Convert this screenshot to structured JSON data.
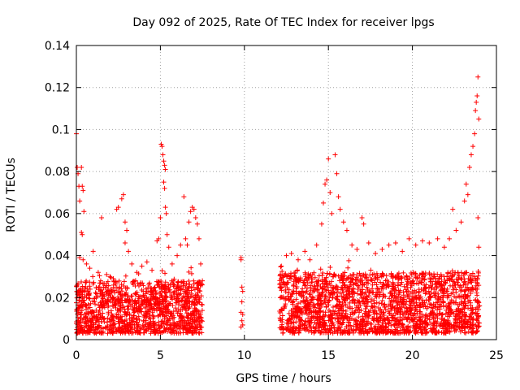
{
  "chart_data": {
    "type": "scatter",
    "title": "Day 092 of 2025, Rate Of TEC Index for receiver lpgs",
    "xlabel": "GPS time / hours",
    "ylabel": "ROTI / TECUs",
    "xlim": [
      0,
      25
    ],
    "ylim": [
      0,
      0.14
    ],
    "xticks": [
      0,
      5,
      10,
      15,
      20,
      25
    ],
    "xtick_labels": [
      "0",
      "5",
      "10",
      "15",
      "20",
      "25"
    ],
    "yticks": [
      0,
      0.02,
      0.04,
      0.06,
      0.08,
      0.1,
      0.12,
      0.14
    ],
    "ytick_labels": [
      "0",
      "0.02",
      "0.04",
      "0.06",
      "0.08",
      "0.1",
      "0.12",
      "0.14"
    ],
    "grid": true,
    "marker": "+",
    "color": "#ff0000",
    "data_gaps_hours": [
      [
        7.5,
        9.7
      ],
      [
        10.0,
        12.1
      ]
    ],
    "series": [
      {
        "name": "ROTI",
        "points": [
          [
            0.0,
            0.098
          ],
          [
            0.05,
            0.082
          ],
          [
            0.1,
            0.079
          ],
          [
            0.15,
            0.073
          ],
          [
            0.2,
            0.066
          ],
          [
            0.3,
            0.082
          ],
          [
            0.35,
            0.073
          ],
          [
            0.4,
            0.071
          ],
          [
            0.45,
            0.061
          ],
          [
            0.3,
            0.051
          ],
          [
            0.35,
            0.05
          ],
          [
            0.2,
            0.039
          ],
          [
            0.4,
            0.038
          ],
          [
            0.6,
            0.036
          ],
          [
            0.8,
            0.034
          ],
          [
            1.0,
            0.042
          ],
          [
            1.3,
            0.032
          ],
          [
            1.5,
            0.058
          ],
          [
            1.8,
            0.031
          ],
          [
            2.0,
            0.03
          ],
          [
            2.2,
            0.029
          ],
          [
            2.4,
            0.062
          ],
          [
            2.5,
            0.063
          ],
          [
            2.7,
            0.067
          ],
          [
            2.8,
            0.069
          ],
          [
            2.9,
            0.056
          ],
          [
            3.0,
            0.052
          ],
          [
            2.9,
            0.046
          ],
          [
            3.1,
            0.042
          ],
          [
            3.3,
            0.036
          ],
          [
            3.6,
            0.032
          ],
          [
            3.9,
            0.035
          ],
          [
            4.2,
            0.037
          ],
          [
            4.5,
            0.033
          ],
          [
            4.8,
            0.047
          ],
          [
            4.9,
            0.048
          ],
          [
            5.0,
            0.058
          ],
          [
            5.05,
            0.093
          ],
          [
            5.1,
            0.092
          ],
          [
            5.15,
            0.088
          ],
          [
            5.2,
            0.085
          ],
          [
            5.25,
            0.083
          ],
          [
            5.3,
            0.081
          ],
          [
            5.2,
            0.075
          ],
          [
            5.25,
            0.072
          ],
          [
            5.3,
            0.063
          ],
          [
            5.35,
            0.06
          ],
          [
            5.4,
            0.05
          ],
          [
            5.5,
            0.044
          ],
          [
            5.7,
            0.036
          ],
          [
            6.0,
            0.04
          ],
          [
            6.2,
            0.045
          ],
          [
            6.4,
            0.068
          ],
          [
            6.5,
            0.048
          ],
          [
            6.6,
            0.045
          ],
          [
            6.7,
            0.056
          ],
          [
            6.8,
            0.061
          ],
          [
            6.9,
            0.063
          ],
          [
            7.0,
            0.062
          ],
          [
            7.1,
            0.058
          ],
          [
            7.2,
            0.055
          ],
          [
            7.3,
            0.048
          ],
          [
            7.4,
            0.036
          ],
          [
            7.5,
            0.028
          ],
          [
            9.8,
            0.039
          ],
          [
            9.8,
            0.038
          ],
          [
            9.85,
            0.025
          ],
          [
            9.9,
            0.023
          ],
          [
            9.85,
            0.018
          ],
          [
            9.8,
            0.013
          ],
          [
            9.9,
            0.012
          ],
          [
            9.85,
            0.009
          ],
          [
            9.9,
            0.007
          ],
          [
            9.8,
            0.006
          ],
          [
            12.2,
            0.035
          ],
          [
            12.5,
            0.04
          ],
          [
            12.8,
            0.041
          ],
          [
            13.2,
            0.038
          ],
          [
            13.6,
            0.042
          ],
          [
            13.9,
            0.038
          ],
          [
            14.3,
            0.045
          ],
          [
            14.6,
            0.055
          ],
          [
            14.7,
            0.065
          ],
          [
            14.8,
            0.074
          ],
          [
            14.9,
            0.076
          ],
          [
            15.0,
            0.086
          ],
          [
            15.1,
            0.07
          ],
          [
            15.2,
            0.06
          ],
          [
            15.4,
            0.088
          ],
          [
            15.5,
            0.079
          ],
          [
            15.6,
            0.068
          ],
          [
            15.7,
            0.062
          ],
          [
            15.9,
            0.056
          ],
          [
            16.1,
            0.052
          ],
          [
            16.4,
            0.045
          ],
          [
            16.7,
            0.043
          ],
          [
            17.0,
            0.058
          ],
          [
            17.1,
            0.055
          ],
          [
            17.4,
            0.046
          ],
          [
            17.8,
            0.041
          ],
          [
            18.2,
            0.043
          ],
          [
            18.6,
            0.045
          ],
          [
            19.0,
            0.046
          ],
          [
            19.4,
            0.042
          ],
          [
            19.8,
            0.048
          ],
          [
            20.2,
            0.045
          ],
          [
            20.6,
            0.047
          ],
          [
            21.0,
            0.046
          ],
          [
            21.5,
            0.048
          ],
          [
            21.9,
            0.044
          ],
          [
            22.2,
            0.048
          ],
          [
            22.4,
            0.062
          ],
          [
            22.6,
            0.052
          ],
          [
            22.9,
            0.056
          ],
          [
            23.1,
            0.066
          ],
          [
            23.2,
            0.074
          ],
          [
            23.3,
            0.069
          ],
          [
            23.4,
            0.082
          ],
          [
            23.5,
            0.088
          ],
          [
            23.6,
            0.092
          ],
          [
            23.7,
            0.098
          ],
          [
            23.75,
            0.109
          ],
          [
            23.8,
            0.113
          ],
          [
            23.85,
            0.116
          ],
          [
            23.9,
            0.125
          ],
          [
            23.95,
            0.105
          ],
          [
            23.9,
            0.058
          ],
          [
            23.95,
            0.044
          ]
        ]
      }
    ],
    "dense_bands": [
      {
        "x_from": 0.0,
        "x_to": 7.5,
        "y_from": 0.003,
        "y_to": 0.028
      },
      {
        "x_from": 12.1,
        "x_to": 24.0,
        "y_from": 0.003,
        "y_to": 0.032
      }
    ]
  }
}
